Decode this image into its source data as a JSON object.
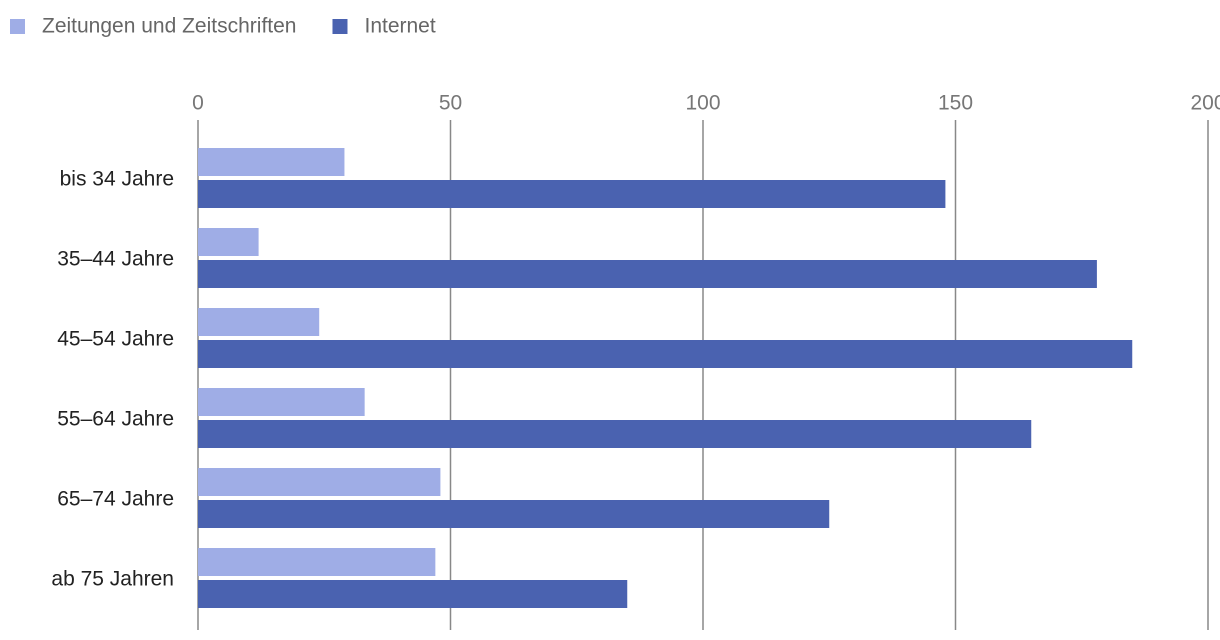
{
  "chart_data": {
    "type": "hbar",
    "categories": [
      "bis 34 Jahre",
      "35–44 Jahre",
      "45–54 Jahre",
      "55–64 Jahre",
      "65–74 Jahre",
      "ab 75 Jahren"
    ],
    "series": [
      {
        "name": "Zeitungen und Zeitschriften",
        "color": "#9fade6",
        "values": [
          29,
          12,
          24,
          33,
          48,
          47
        ]
      },
      {
        "name": "Internet",
        "color": "#4a62b0",
        "values": [
          148,
          178,
          185,
          165,
          125,
          85
        ]
      }
    ],
    "xlim": [
      0,
      200
    ],
    "xticks": [
      0,
      50,
      100,
      150,
      200
    ],
    "grid": true,
    "legend": "top-left"
  }
}
